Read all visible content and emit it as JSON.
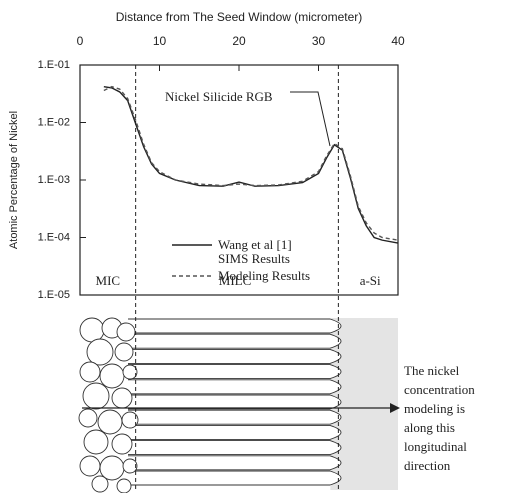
{
  "chart_data": {
    "type": "line",
    "x_label": "Distance from The Seed Window (micrometer)",
    "y_label": "Atomic Percentage of Nickel",
    "y_scale": "log",
    "xlim": [
      0,
      40
    ],
    "xticks": [
      0,
      10,
      20,
      30,
      40
    ],
    "ylim": [
      1e-05,
      0.1
    ],
    "yticks": [
      {
        "value": 0.1,
        "label": "1.E-01"
      },
      {
        "value": 0.01,
        "label": "1.E-02"
      },
      {
        "value": 0.001,
        "label": "1.E-03"
      },
      {
        "value": 0.0001,
        "label": "1.E-04"
      },
      {
        "value": 1e-05,
        "label": "1.E-05"
      }
    ],
    "x": [
      3,
      4,
      5,
      6,
      7,
      8,
      9,
      10,
      12,
      15,
      18,
      20,
      22,
      25,
      28,
      30,
      31,
      32,
      33,
      34,
      35,
      36,
      37,
      38,
      40
    ],
    "series": [
      {
        "name": "Wang et al [1] SIMS Results",
        "color": "#222222",
        "dash": false,
        "values": [
          0.042,
          0.04,
          0.034,
          0.024,
          0.0095,
          0.0038,
          0.0019,
          0.0013,
          0.001,
          0.0008,
          0.00078,
          0.00092,
          0.00078,
          0.0008,
          0.0009,
          0.0013,
          0.0024,
          0.0041,
          0.0033,
          0.0011,
          0.00032,
          0.00016,
          0.0001,
          9e-05,
          8e-05
        ]
      },
      {
        "name": "Modeling Results",
        "color": "#555555",
        "dash": true,
        "values": [
          0.036,
          0.042,
          0.038,
          0.026,
          0.011,
          0.0042,
          0.002,
          0.0014,
          0.001,
          0.00085,
          0.0008,
          0.00085,
          0.0008,
          0.00082,
          0.00095,
          0.0014,
          0.0026,
          0.0043,
          0.0035,
          0.0012,
          0.00035,
          0.00018,
          0.00012,
          0.0001,
          9e-05
        ]
      }
    ],
    "boundaries": [
      7,
      32.5
    ],
    "regions": [
      {
        "label": "MIC",
        "x": 3.5
      },
      {
        "label": "MILC",
        "x": 19.5
      },
      {
        "label": "a-Si",
        "x": 36.5
      }
    ],
    "annotation": "Nickel Silicide RGB",
    "note_lines": [
      "The nickel",
      "concentration",
      "modeling is",
      "along this",
      "longitudinal",
      "direction"
    ]
  }
}
